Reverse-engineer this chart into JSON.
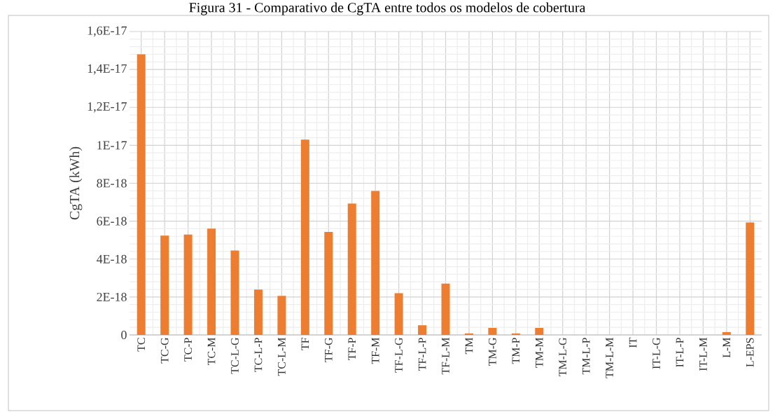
{
  "chart_data": {
    "type": "bar",
    "title": "Figura 31 - Comparativo de CgTA entre todos os modelos de cobertura",
    "ylabel": "CgTA (kWh)",
    "categories": [
      "TC",
      "TC-G",
      "TC-P",
      "TC-M",
      "TC-L-G",
      "TC-L-P",
      "TC-L-M",
      "TF",
      "TF-G",
      "TF-P",
      "TF-M",
      "TF-L-G",
      "TF-L-P",
      "TF-L-M",
      "TM",
      "TM-G",
      "TM-P",
      "TM-M",
      "TM-L-G",
      "TM-L-P",
      "TM-L-M",
      "IT",
      "IT-L-G",
      "IT-L-P",
      "IT-L-M",
      "L-M",
      "L-EPS"
    ],
    "values": [
      1.48e-17,
      5.24e-18,
      5.29e-18,
      5.61e-18,
      4.45e-18,
      2.39e-18,
      2.06e-18,
      1.03e-17,
      5.43e-18,
      6.93e-18,
      7.59e-18,
      2.2e-18,
      5.1e-19,
      2.71e-18,
      8e-20,
      3.7e-19,
      8e-20,
      3.7e-19,
      0,
      0,
      0,
      0,
      0,
      0,
      0,
      1.5e-19,
      5.93e-18
    ],
    "color": "#ed7d31",
    "ylim": [
      0,
      1.6e-17
    ],
    "yticks": [
      {
        "value": 0,
        "label": "0"
      },
      {
        "value": 2e-18,
        "label": "2E-18"
      },
      {
        "value": 4e-18,
        "label": "4E-18"
      },
      {
        "value": 6e-18,
        "label": "6E-18"
      },
      {
        "value": 8e-18,
        "label": "8E-18"
      },
      {
        "value": 1e-17,
        "label": "1E-17"
      },
      {
        "value": 1.2e-17,
        "label": "1,2E-17"
      },
      {
        "value": 1.4e-17,
        "label": "1,4E-17"
      },
      {
        "value": 1.6e-17,
        "label": "1,6E-17"
      }
    ],
    "grid": true
  }
}
